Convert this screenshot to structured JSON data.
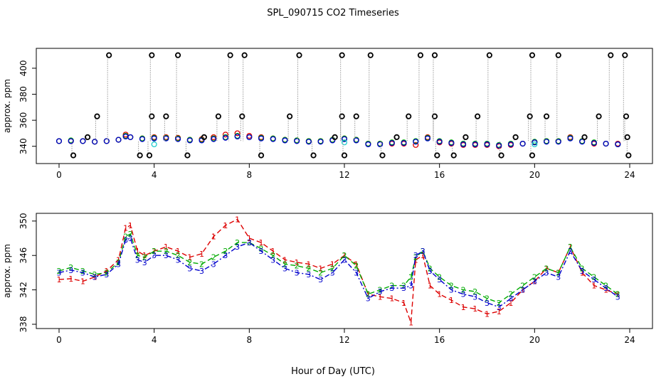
{
  "title": "SPL_090715  CO2 Timeseries",
  "xlabel": "Hour of Day (UTC)",
  "chart_data": [
    {
      "type": "scatter",
      "name": "top-panel",
      "ylabel": "approx. ppm",
      "xlim": [
        0,
        24
      ],
      "ylim": [
        330,
        412
      ],
      "x_ticks": [
        0,
        4,
        8,
        12,
        16,
        20,
        24
      ],
      "y_ticks": [
        340,
        360,
        380,
        400
      ],
      "series": [
        {
          "name": "red",
          "color": "#dd0000",
          "x": [
            0.0,
            0.5,
            1.0,
            1.5,
            2.0,
            2.5,
            2.8,
            3.0,
            3.5,
            4.0,
            4.5,
            5.0,
            5.5,
            6.0,
            6.5,
            7.0,
            7.5,
            8.0,
            8.5,
            9.0,
            9.5,
            10.0,
            10.5,
            11.0,
            11.5,
            12.0,
            12.5,
            13.0,
            13.5,
            14.0,
            14.5,
            15.0,
            15.5,
            16.0,
            16.5,
            17.0,
            17.5,
            18.0,
            18.5,
            19.0,
            19.5,
            20.0,
            20.5,
            21.0,
            21.5,
            22.0,
            22.5,
            23.0,
            23.5
          ],
          "y": [
            344,
            344,
            344,
            343.5,
            344,
            345,
            349,
            347,
            346,
            347,
            347,
            346.5,
            345,
            345.5,
            347,
            349,
            350,
            348,
            347,
            346,
            345,
            344.5,
            344,
            344,
            345,
            346,
            345,
            342,
            342,
            342,
            342,
            341,
            347,
            343,
            342,
            341,
            341,
            341,
            340,
            341,
            342,
            343,
            344,
            344,
            347,
            344,
            342,
            342,
            342
          ]
        },
        {
          "name": "green",
          "color": "#00aa00",
          "x": [
            0.0,
            0.5,
            1.0,
            1.5,
            2.0,
            2.5,
            2.8,
            3.0,
            3.5,
            4.0,
            4.5,
            5.0,
            5.5,
            6.0,
            6.5,
            7.0,
            7.5,
            8.0,
            8.5,
            9.0,
            9.5,
            10.0,
            10.5,
            11.0,
            11.5,
            12.0,
            12.5,
            13.0,
            13.5,
            14.0,
            14.5,
            15.0,
            15.5,
            16.0,
            16.5,
            17.0,
            17.5,
            18.0,
            18.5,
            19.0,
            19.5,
            20.0,
            20.5,
            21.0,
            21.5,
            22.0,
            22.5,
            23.0,
            23.5
          ],
          "y": [
            344,
            344.5,
            344,
            343.5,
            344,
            345,
            348,
            347,
            346,
            346.5,
            346.5,
            346,
            345,
            345,
            346,
            347,
            348,
            347,
            346.5,
            346,
            345,
            344.5,
            344,
            344,
            345,
            346,
            345,
            342,
            342,
            343,
            343,
            344,
            346.5,
            344,
            343,
            342,
            342,
            342,
            341,
            342,
            342,
            343.5,
            344,
            344,
            346.5,
            344,
            343,
            342,
            341.5
          ]
        },
        {
          "name": "blue",
          "color": "#0000cc",
          "x": [
            0.0,
            0.5,
            1.0,
            1.5,
            2.0,
            2.5,
            2.8,
            3.0,
            3.5,
            4.0,
            4.5,
            5.0,
            5.5,
            6.0,
            6.5,
            7.0,
            7.5,
            8.0,
            8.5,
            9.0,
            9.5,
            10.0,
            10.5,
            11.0,
            11.5,
            12.0,
            12.5,
            13.0,
            13.5,
            14.0,
            14.5,
            15.0,
            15.5,
            16.0,
            16.5,
            17.0,
            17.5,
            18.0,
            18.5,
            19.0,
            19.5,
            20.0,
            20.5,
            21.0,
            21.5,
            22.0,
            22.5,
            23.0,
            23.5
          ],
          "y": [
            344,
            344,
            344,
            343.5,
            344,
            345,
            347.5,
            347,
            345.5,
            346,
            346,
            345.5,
            344.5,
            344.5,
            345.5,
            346.5,
            347.5,
            347,
            346,
            345.5,
            344.5,
            344,
            343.5,
            343.5,
            344.5,
            345.5,
            344.5,
            341.5,
            341.5,
            342.5,
            342.5,
            343.5,
            346,
            343.5,
            342.5,
            341.5,
            341.5,
            341.5,
            340.5,
            341.5,
            342,
            343,
            343.5,
            343.5,
            346,
            343.5,
            342.5,
            342,
            341.5
          ]
        },
        {
          "name": "cyan",
          "color": "#22cccc",
          "x": [
            4.0,
            12.0,
            20.0
          ],
          "y": [
            341.5,
            343,
            341.5
          ]
        },
        {
          "name": "black",
          "color": "#000000",
          "x": [
            0.6,
            1.2,
            1.6,
            2.1,
            3.4,
            3.8,
            3.9,
            3.9,
            4.5,
            5.0,
            5.4,
            6.1,
            6.7,
            7.2,
            7.7,
            7.8,
            8.5,
            9.7,
            10.1,
            10.7,
            11.6,
            11.9,
            11.9,
            12.0,
            12.5,
            13.1,
            13.6,
            14.2,
            14.7,
            15.2,
            15.8,
            15.8,
            15.9,
            16.6,
            17.1,
            17.6,
            18.1,
            18.6,
            19.2,
            19.8,
            19.9,
            19.9,
            20.5,
            21.0,
            22.1,
            22.7,
            23.2,
            23.8,
            23.85,
            23.9,
            23.95
          ],
          "y": [
            333,
            347,
            363,
            410,
            333,
            333,
            363,
            410,
            363,
            410,
            333,
            347,
            363,
            410,
            363,
            410,
            333,
            363,
            410,
            333,
            347,
            363,
            410,
            333,
            363,
            410,
            333,
            347,
            363,
            410,
            363,
            410,
            333,
            333,
            347,
            363,
            410,
            333,
            347,
            363,
            410,
            333,
            363,
            410,
            347,
            363,
            410,
            410,
            363,
            347,
            333
          ]
        }
      ]
    },
    {
      "type": "line",
      "name": "bottom-panel",
      "ylabel": "approx. ppm",
      "xlim": [
        0,
        24
      ],
      "ylim": [
        338,
        350.4
      ],
      "x_ticks": [
        0,
        4,
        8,
        12,
        16,
        20,
        24
      ],
      "y_ticks": [
        338,
        342,
        346,
        350
      ],
      "series": [
        {
          "name": "1",
          "color": "#dd0000",
          "dash": "dashed",
          "x": [
            0.0,
            0.5,
            1.0,
            1.5,
            2.0,
            2.5,
            2.8,
            3.0,
            3.3,
            3.6,
            4.0,
            4.5,
            5.0,
            5.5,
            6.0,
            6.5,
            7.0,
            7.5,
            8.0,
            8.5,
            9.0,
            9.5,
            10.0,
            10.5,
            11.0,
            11.5,
            12.0,
            12.5,
            13.0,
            13.5,
            14.0,
            14.5,
            14.8,
            15.0,
            15.3,
            15.6,
            16.0,
            16.5,
            17.0,
            17.5,
            18.0,
            18.5,
            19.0,
            19.5,
            20.0,
            20.5,
            21.0,
            21.5,
            22.0,
            22.5,
            23.0,
            23.5
          ],
          "y": [
            343.2,
            343.3,
            343.0,
            343.5,
            344.2,
            345.5,
            349.2,
            349.5,
            346.5,
            346.0,
            346.5,
            347.0,
            346.5,
            345.8,
            346.2,
            348.2,
            349.5,
            350.2,
            348.0,
            347.5,
            346.5,
            345.5,
            345.2,
            345.0,
            344.5,
            345.0,
            346.0,
            345.0,
            341.5,
            341.2,
            341.0,
            340.5,
            338.2,
            345.5,
            346.0,
            342.5,
            341.5,
            340.8,
            340.0,
            339.8,
            339.2,
            339.5,
            340.5,
            342.0,
            343.0,
            344.5,
            344.0,
            347.0,
            344.0,
            342.5,
            342.0,
            341.5
          ]
        },
        {
          "name": "2",
          "color": "#00aa00",
          "dash": "dashed",
          "x": [
            0.0,
            0.5,
            1.0,
            1.5,
            2.0,
            2.5,
            2.8,
            3.0,
            3.3,
            3.6,
            4.0,
            4.5,
            5.0,
            5.5,
            6.0,
            6.5,
            7.0,
            7.5,
            8.0,
            8.5,
            9.0,
            9.5,
            10.0,
            10.5,
            11.0,
            11.5,
            12.0,
            12.5,
            13.0,
            13.5,
            14.0,
            14.5,
            14.8,
            15.0,
            15.3,
            15.6,
            16.0,
            16.5,
            17.0,
            17.5,
            18.0,
            18.5,
            19.0,
            19.5,
            20.0,
            20.5,
            21.0,
            21.5,
            22.0,
            22.5,
            23.0,
            23.5
          ],
          "y": [
            344.2,
            344.6,
            344.2,
            343.8,
            344.0,
            345.2,
            348.2,
            348.5,
            346.0,
            345.8,
            346.5,
            346.5,
            346.0,
            345.2,
            345.0,
            345.8,
            346.5,
            347.5,
            347.5,
            346.8,
            346.0,
            345.0,
            344.8,
            344.5,
            344.0,
            344.5,
            346.0,
            344.8,
            341.5,
            342.0,
            342.5,
            342.5,
            343.5,
            345.8,
            346.5,
            344.5,
            343.5,
            342.5,
            342.0,
            341.8,
            341.0,
            340.5,
            341.5,
            342.5,
            343.5,
            344.5,
            344.0,
            347.0,
            344.5,
            343.5,
            342.5,
            341.5
          ]
        },
        {
          "name": "3",
          "color": "#0000cc",
          "dash": "dashdot",
          "x": [
            0.0,
            0.5,
            1.0,
            1.5,
            2.0,
            2.5,
            2.8,
            3.0,
            3.3,
            3.6,
            4.0,
            4.5,
            5.0,
            5.5,
            6.0,
            6.5,
            7.0,
            7.5,
            8.0,
            8.5,
            9.0,
            9.5,
            10.0,
            10.5,
            11.0,
            11.5,
            12.0,
            12.5,
            13.0,
            13.5,
            14.0,
            14.5,
            14.8,
            15.0,
            15.3,
            15.6,
            16.0,
            16.5,
            17.0,
            17.5,
            18.0,
            18.5,
            19.0,
            19.5,
            20.0,
            20.5,
            21.0,
            21.5,
            22.0,
            22.5,
            23.0,
            23.5
          ],
          "y": [
            344.0,
            344.3,
            344.0,
            343.5,
            343.8,
            345.0,
            347.8,
            348.0,
            345.5,
            345.2,
            346.0,
            346.0,
            345.5,
            344.5,
            344.2,
            345.0,
            346.0,
            347.0,
            347.5,
            346.5,
            345.5,
            344.5,
            344.0,
            343.8,
            343.2,
            344.0,
            345.5,
            344.0,
            341.0,
            341.8,
            342.2,
            342.2,
            342.5,
            346.0,
            346.5,
            344.2,
            343.2,
            342.0,
            341.5,
            341.2,
            340.5,
            340.0,
            341.0,
            342.0,
            343.0,
            344.0,
            343.5,
            346.5,
            344.2,
            343.2,
            342.2,
            341.2
          ]
        }
      ]
    }
  ]
}
